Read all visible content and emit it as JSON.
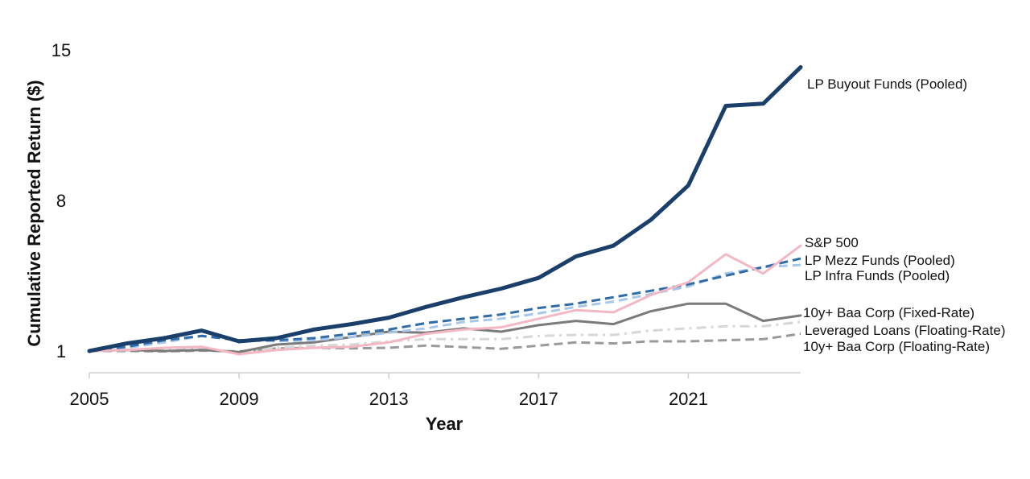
{
  "chart_data": {
    "type": "line",
    "xlabel": "Year",
    "ylabel": "Cumulative Reported Return ($)",
    "xlim": [
      2005,
      2024
    ],
    "ylim": [
      1,
      15
    ],
    "xticks": [
      "2005",
      "2009",
      "2013",
      "2017",
      "2021"
    ],
    "yticks": [
      "1",
      "8",
      "15"
    ],
    "grid": false,
    "legend": "end-of-line labels",
    "x": [
      2005,
      2006,
      2007,
      2008,
      2009,
      2010,
      2011,
      2012,
      2013,
      2014,
      2015,
      2016,
      2017,
      2018,
      2019,
      2020,
      2021,
      2022,
      2023,
      2024
    ],
    "series": [
      {
        "name": "LP Buyout Funds (Pooled)",
        "color": "#1a3f6b",
        "dash": "solid",
        "width": 5,
        "values": [
          1.0,
          1.35,
          1.6,
          1.95,
          1.45,
          1.6,
          2.0,
          2.25,
          2.55,
          3.05,
          3.5,
          3.9,
          4.4,
          5.4,
          5.9,
          7.1,
          8.7,
          12.4,
          12.5,
          14.2
        ]
      },
      {
        "name": "S&P 500",
        "color": "#f4b7c4",
        "dash": "solid",
        "width": 3,
        "values": [
          1.0,
          1.05,
          1.15,
          1.2,
          0.85,
          1.05,
          1.15,
          1.2,
          1.4,
          1.8,
          2.0,
          2.1,
          2.5,
          2.9,
          2.8,
          3.6,
          4.2,
          5.5,
          4.6,
          5.9
        ]
      },
      {
        "name": "LP Mezz Funds (Pooled)",
        "color": "#2f6ca8",
        "dash": "dashed",
        "width": 3,
        "values": [
          1.0,
          1.2,
          1.5,
          1.7,
          1.5,
          1.5,
          1.6,
          1.8,
          2.0,
          2.3,
          2.5,
          2.7,
          3.0,
          3.2,
          3.5,
          3.8,
          4.1,
          4.5,
          4.9,
          5.3
        ]
      },
      {
        "name": "LP Infra Funds (Pooled)",
        "color": "#a8c7e8",
        "dash": "dashed",
        "width": 3,
        "values": [
          1.0,
          1.15,
          1.4,
          1.7,
          1.5,
          1.45,
          1.5,
          1.65,
          1.85,
          2.05,
          2.35,
          2.5,
          2.75,
          3.05,
          3.3,
          3.65,
          4.0,
          4.6,
          4.9,
          5.0
        ]
      },
      {
        "name": "10y+ Baa Corp (Fixed-Rate)",
        "color": "#7b7b7b",
        "dash": "solid",
        "width": 3,
        "values": [
          1.0,
          1.05,
          1.0,
          1.05,
          0.95,
          1.3,
          1.4,
          1.65,
          1.9,
          1.85,
          2.05,
          1.9,
          2.2,
          2.4,
          2.25,
          2.85,
          3.2,
          3.2,
          2.4,
          2.65
        ]
      },
      {
        "name": "Leveraged Loans (Floating-Rate)",
        "color": "#d7d7d7",
        "dash": "dashdot",
        "width": 3,
        "values": [
          1.0,
          1.05,
          1.05,
          1.1,
          0.95,
          1.15,
          1.25,
          1.3,
          1.45,
          1.55,
          1.55,
          1.55,
          1.7,
          1.75,
          1.75,
          1.95,
          2.05,
          2.15,
          2.15,
          2.35
        ]
      },
      {
        "name": "10y+ Baa Corp (Floating-Rate)",
        "color": "#9a9a9a",
        "dash": "dashed",
        "width": 3,
        "values": [
          1.0,
          1.0,
          0.98,
          1.02,
          0.98,
          1.12,
          1.15,
          1.12,
          1.15,
          1.25,
          1.18,
          1.1,
          1.25,
          1.4,
          1.35,
          1.45,
          1.45,
          1.5,
          1.55,
          1.8
        ]
      }
    ]
  }
}
